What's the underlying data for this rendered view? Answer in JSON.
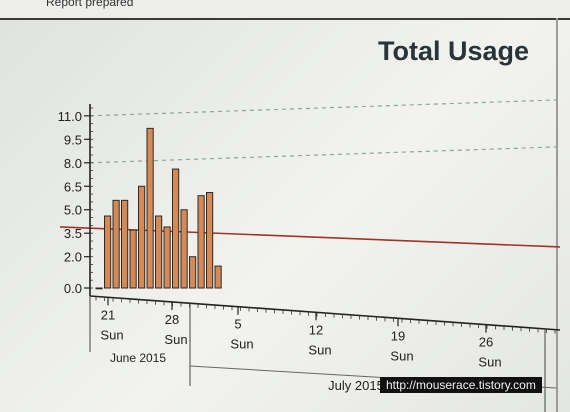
{
  "report": {
    "header_text": "Report prepared"
  },
  "chart_data": {
    "type": "bar",
    "title": "Total Usage",
    "xlabel": "",
    "ylabel": "",
    "ylim": [
      0,
      11.5
    ],
    "y_ticks": [
      0.0,
      2.0,
      3.5,
      5.0,
      6.5,
      8.0,
      9.5,
      11.0
    ],
    "y_tick_labels": [
      "0.0",
      "2.0",
      "3.5",
      "5.0",
      "6.5",
      "8.0",
      "9.5",
      "11.0"
    ],
    "values": [
      0.0,
      4.6,
      5.6,
      5.6,
      3.7,
      6.5,
      10.2,
      4.6,
      3.9,
      7.6,
      5.0,
      2.0,
      5.9,
      6.1,
      1.4
    ],
    "reference_line": 3.9,
    "dashed_gridlines": [
      8.0,
      11.0
    ],
    "date_ticks": [
      {
        "label": "21",
        "day": "Sun"
      },
      {
        "label": "28",
        "day": "Sun"
      },
      {
        "label": "5",
        "day": "Sun"
      },
      {
        "label": "12",
        "day": "Sun"
      },
      {
        "label": "19",
        "day": "Sun"
      },
      {
        "label": "26",
        "day": "Sun"
      }
    ],
    "months": [
      "June 2015",
      "July 2015"
    ],
    "bar_color": "#d58a55",
    "reference_line_color": "#a3322c"
  },
  "footer": {
    "link_text": "http://mouserace.tistory.com"
  }
}
